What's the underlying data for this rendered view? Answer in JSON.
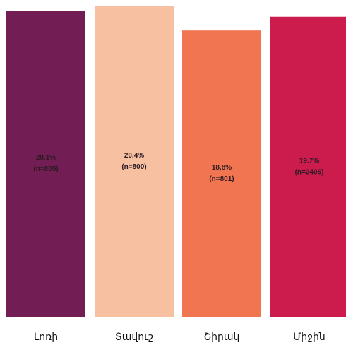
{
  "chart_data": {
    "type": "bar",
    "title": "",
    "xlabel": "",
    "ylabel": "",
    "ylim": [
      0,
      20.8
    ],
    "grid": false,
    "legend": "none",
    "categories": [
      "Լոռի",
      "Տավուշ",
      "Շիրակ",
      "Միջին"
    ],
    "values": [
      20.1,
      20.4,
      18.8,
      19.7
    ],
    "value_labels": [
      "20.1%",
      "20.4%",
      "18.8%",
      "19.7%"
    ],
    "n_labels": [
      "(n=805)",
      "(n=800)",
      "(n=801)",
      "(n=2406)"
    ],
    "colors": [
      "#731d55",
      "#f7c0a0",
      "#f07550",
      "#cc1c4e"
    ]
  }
}
